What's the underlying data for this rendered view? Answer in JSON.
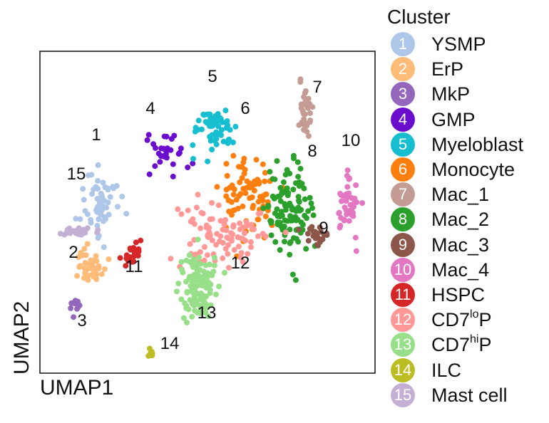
{
  "chart_data": {
    "type": "scatter",
    "xlabel": "UMAP1",
    "ylabel": "UMAP2",
    "ticks": "none",
    "legend": {
      "title": "Cluster",
      "placement": "right"
    },
    "clusters": [
      {
        "id": "1",
        "name": "YSMP",
        "color": "#aec7e8",
        "center": [
          1.8,
          5.3
        ],
        "spread": [
          0.5,
          1.0
        ],
        "count": 60
      },
      {
        "id": "2",
        "name": "ErP",
        "color": "#ffbb78",
        "center": [
          1.5,
          3.4
        ],
        "spread": [
          0.4,
          0.5
        ],
        "count": 40
      },
      {
        "id": "3",
        "name": "MkP",
        "color": "#9467bd",
        "center": [
          1.1,
          2.2
        ],
        "spread": [
          0.15,
          0.3
        ],
        "count": 14
      },
      {
        "id": "4",
        "name": "GMP",
        "color": "#6a0dcc",
        "center": [
          3.8,
          6.8
        ],
        "spread": [
          0.5,
          0.6
        ],
        "count": 30
      },
      {
        "id": "5",
        "name": "Myeloblast",
        "color": "#17becf",
        "center": [
          5.2,
          7.6
        ],
        "spread": [
          0.6,
          0.6
        ],
        "count": 60
      },
      {
        "id": "6",
        "name": "Monocyte",
        "color": "#ff7f0e",
        "center": [
          6.2,
          5.5
        ],
        "spread": [
          0.7,
          1.1
        ],
        "count": 80
      },
      {
        "id": "7",
        "name": "Mac_1",
        "color": "#c49c94",
        "center": [
          7.9,
          8.1
        ],
        "spread": [
          0.2,
          0.8
        ],
        "count": 40
      },
      {
        "id": "8",
        "name": "Mac_2",
        "color": "#2ca02c",
        "center": [
          7.4,
          5.1
        ],
        "spread": [
          0.6,
          1.2
        ],
        "count": 110
      },
      {
        "id": "9",
        "name": "Mac_3",
        "color": "#8c564b",
        "center": [
          8.3,
          4.3
        ],
        "spread": [
          0.3,
          0.4
        ],
        "count": 25
      },
      {
        "id": "10",
        "name": "Mac_4",
        "color": "#e377c2",
        "center": [
          9.2,
          5.2
        ],
        "spread": [
          0.3,
          0.8
        ],
        "count": 45
      },
      {
        "id": "11",
        "name": "HSPC",
        "color": "#d62728",
        "center": [
          2.7,
          3.7
        ],
        "spread": [
          0.3,
          0.3
        ],
        "count": 22
      },
      {
        "id": "12",
        "name": "CD7loP",
        "color": "#ff9896",
        "center": [
          5.4,
          4.4
        ],
        "spread": [
          1.1,
          1.0
        ],
        "count": 90
      },
      {
        "id": "13",
        "name": "CD7hiP",
        "color": "#98df8a",
        "center": [
          4.7,
          2.7
        ],
        "spread": [
          0.5,
          0.9
        ],
        "count": 120
      },
      {
        "id": "14",
        "name": "ILC",
        "color": "#bcbd22",
        "center": [
          3.3,
          0.6
        ],
        "spread": [
          0.06,
          0.15
        ],
        "count": 10
      },
      {
        "id": "15",
        "name": "Mast cell",
        "color": "#c5b0d5",
        "center": [
          1.2,
          4.4
        ],
        "spread": [
          0.4,
          0.15
        ],
        "count": 25
      }
    ],
    "legend_entries": [
      {
        "num": "1",
        "label": "YSMP",
        "color": "#aec7e8"
      },
      {
        "num": "2",
        "label": "ErP",
        "color": "#ffbb78"
      },
      {
        "num": "3",
        "label": "MkP",
        "color": "#9467bd"
      },
      {
        "num": "4",
        "label": "GMP",
        "color": "#6a0dcc"
      },
      {
        "num": "5",
        "label": "Myeloblast",
        "color": "#17becf"
      },
      {
        "num": "6",
        "label": "Monocyte",
        "color": "#ff7f0e"
      },
      {
        "num": "7",
        "label": "Mac_1",
        "color": "#c49c94"
      },
      {
        "num": "8",
        "label": "Mac_2",
        "color": "#2ca02c"
      },
      {
        "num": "9",
        "label": "Mac_3",
        "color": "#8c564b"
      },
      {
        "num": "10",
        "label": "Mac_4",
        "color": "#e377c2"
      },
      {
        "num": "11",
        "label": "HSPC",
        "color": "#d62728"
      },
      {
        "num": "12",
        "label_main": "CD7",
        "label_sup": "lo",
        "label_tail": "P",
        "color": "#ff9896"
      },
      {
        "num": "13",
        "label_main": "CD7",
        "label_sup": "hi",
        "label_tail": "P",
        "color": "#98df8a"
      },
      {
        "num": "14",
        "label": "ILC",
        "color": "#bcbd22"
      },
      {
        "num": "15",
        "label": "Mast cell",
        "color": "#c5b0d5"
      }
    ]
  }
}
